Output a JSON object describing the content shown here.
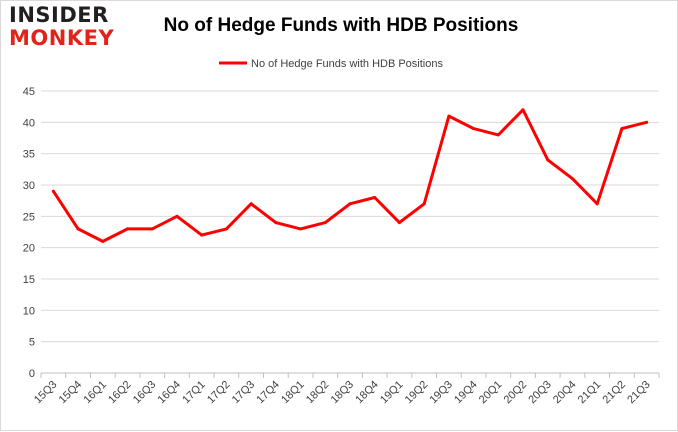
{
  "logo": {
    "line1": "INSIDER",
    "line2": "MONKEY"
  },
  "chart_data": {
    "type": "line",
    "title": "No of Hedge Funds with HDB Positions",
    "xlabel": "",
    "ylabel": "",
    "categories": [
      "15Q3",
      "15Q4",
      "16Q1",
      "16Q2",
      "16Q3",
      "16Q4",
      "17Q1",
      "17Q2",
      "17Q3",
      "17Q4",
      "18Q1",
      "18Q2",
      "18Q3",
      "18Q4",
      "19Q1",
      "19Q2",
      "19Q3",
      "19Q4",
      "20Q1",
      "20Q2",
      "20Q3",
      "20Q4",
      "21Q1",
      "21Q2",
      "21Q3"
    ],
    "series": [
      {
        "name": "No of Hedge Funds with HDB Positions",
        "color": "#ff0000",
        "values": [
          29,
          23,
          21,
          23,
          23,
          25,
          22,
          23,
          27,
          24,
          23,
          24,
          27,
          28,
          24,
          27,
          41,
          39,
          38,
          42,
          34,
          31,
          27,
          39,
          40
        ]
      }
    ],
    "ylim": [
      0,
      45
    ],
    "yticks": [
      0,
      5,
      10,
      15,
      20,
      25,
      30,
      35,
      40,
      45
    ],
    "grid": true,
    "legend_position": "top-center"
  }
}
